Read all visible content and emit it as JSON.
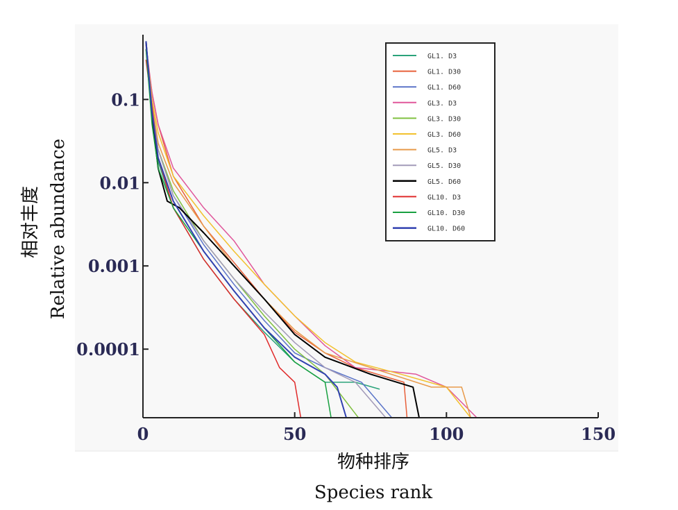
{
  "chart_data": {
    "type": "line",
    "xlabel_cn": "物种排序",
    "xlabel": "Species rank",
    "ylabel_cn": "相对丰度",
    "ylabel": "Relative abundance",
    "y_scale": "log",
    "xlim": [
      0,
      150
    ],
    "ylim": [
      1.5e-05,
      0.6
    ],
    "x_ticks": [
      0,
      50,
      100,
      150
    ],
    "x_tick_labels": [
      "0",
      "50",
      "100",
      "150"
    ],
    "y_ticks": [
      0.1,
      0.01,
      0.001,
      0.0001
    ],
    "y_tick_labels": [
      "0.1",
      "0.01",
      "0.001",
      "0.0001"
    ],
    "grid": false,
    "legend_position": "top-right",
    "series": [
      {
        "name": "GL1. D3",
        "color": "#2aa37a",
        "lw": 1.5,
        "end_rank": 78,
        "points": [
          [
            1,
            0.5
          ],
          [
            3,
            0.07
          ],
          [
            5,
            0.018
          ],
          [
            10,
            0.005
          ],
          [
            20,
            0.0012
          ],
          [
            30,
            0.0004
          ],
          [
            40,
            0.00016
          ],
          [
            50,
            7e-05
          ],
          [
            60,
            4e-05
          ],
          [
            70,
            4e-05
          ],
          [
            78,
            3.3e-05
          ]
        ]
      },
      {
        "name": "GL1. D30",
        "color": "#e8603a",
        "lw": 1.5,
        "end_rank": 87,
        "points": [
          [
            1,
            0.4
          ],
          [
            3,
            0.12
          ],
          [
            5,
            0.05
          ],
          [
            10,
            0.012
          ],
          [
            20,
            0.003
          ],
          [
            30,
            0.0011
          ],
          [
            40,
            0.0004
          ],
          [
            50,
            0.00016
          ],
          [
            60,
            9e-05
          ],
          [
            70,
            6e-05
          ],
          [
            86,
            4e-05
          ],
          [
            87,
            1.5e-05
          ]
        ]
      },
      {
        "name": "GL1. D60",
        "color": "#5b74c8",
        "lw": 1.5,
        "end_rank": 82,
        "points": [
          [
            1,
            0.5
          ],
          [
            3,
            0.08
          ],
          [
            5,
            0.025
          ],
          [
            10,
            0.007
          ],
          [
            20,
            0.0018
          ],
          [
            30,
            0.0006
          ],
          [
            40,
            0.00022
          ],
          [
            50,
            9e-05
          ],
          [
            60,
            6e-05
          ],
          [
            72,
            4e-05
          ],
          [
            82,
            1.5e-05
          ]
        ]
      },
      {
        "name": "GL3. D3",
        "color": "#e0569a",
        "lw": 1.5,
        "end_rank": 133,
        "points": [
          [
            1,
            0.45
          ],
          [
            3,
            0.12
          ],
          [
            5,
            0.05
          ],
          [
            10,
            0.015
          ],
          [
            20,
            0.005
          ],
          [
            30,
            0.002
          ],
          [
            40,
            0.0006
          ],
          [
            50,
            0.00025
          ],
          [
            60,
            0.00011
          ],
          [
            70,
            6e-05
          ],
          [
            90,
            5e-05
          ],
          [
            100,
            3.5e-05
          ],
          [
            110,
            1.5e-05
          ],
          [
            133,
            1.5e-05
          ]
        ]
      },
      {
        "name": "GL3. D30",
        "color": "#80c040",
        "lw": 1.5,
        "end_rank": 71,
        "points": [
          [
            1,
            0.4
          ],
          [
            3,
            0.08
          ],
          [
            5,
            0.025
          ],
          [
            10,
            0.008
          ],
          [
            20,
            0.002
          ],
          [
            30,
            0.0007
          ],
          [
            40,
            0.00025
          ],
          [
            50,
            0.0001
          ],
          [
            60,
            5e-05
          ],
          [
            71,
            1.5e-05
          ]
        ]
      },
      {
        "name": "GL3. D60",
        "color": "#f2c12e",
        "lw": 1.5,
        "end_rank": 108,
        "points": [
          [
            1,
            0.45
          ],
          [
            3,
            0.1
          ],
          [
            5,
            0.04
          ],
          [
            10,
            0.012
          ],
          [
            20,
            0.004
          ],
          [
            30,
            0.0015
          ],
          [
            40,
            0.0006
          ],
          [
            50,
            0.00025
          ],
          [
            60,
            0.00012
          ],
          [
            70,
            7e-05
          ],
          [
            85,
            5e-05
          ],
          [
            100,
            3.5e-05
          ],
          [
            108,
            1.5e-05
          ]
        ]
      },
      {
        "name": "GL5. D3",
        "color": "#e89a4a",
        "lw": 1.5,
        "end_rank": 108,
        "points": [
          [
            1,
            0.4
          ],
          [
            3,
            0.09
          ],
          [
            5,
            0.03
          ],
          [
            10,
            0.01
          ],
          [
            20,
            0.003
          ],
          [
            30,
            0.001
          ],
          [
            40,
            0.0004
          ],
          [
            50,
            0.00017
          ],
          [
            60,
            9e-05
          ],
          [
            75,
            6e-05
          ],
          [
            95,
            3.5e-05
          ],
          [
            105,
            3.5e-05
          ],
          [
            108,
            1.5e-05
          ]
        ]
      },
      {
        "name": "GL5. D30",
        "color": "#a29ab8",
        "lw": 1.5,
        "end_rank": 80,
        "points": [
          [
            1,
            0.45
          ],
          [
            3,
            0.08
          ],
          [
            5,
            0.025
          ],
          [
            10,
            0.007
          ],
          [
            20,
            0.002
          ],
          [
            30,
            0.0007
          ],
          [
            40,
            0.00028
          ],
          [
            50,
            0.00012
          ],
          [
            60,
            6e-05
          ],
          [
            70,
            4e-05
          ],
          [
            80,
            1.5e-05
          ]
        ]
      },
      {
        "name": "GL5. D60",
        "color": "#000000",
        "lw": 2.0,
        "end_rank": 102,
        "points": [
          [
            1,
            0.5
          ],
          [
            3,
            0.06
          ],
          [
            5,
            0.015
          ],
          [
            8,
            0.006
          ],
          [
            12,
            0.005
          ],
          [
            20,
            0.0025
          ],
          [
            30,
            0.001
          ],
          [
            40,
            0.0004
          ],
          [
            50,
            0.00015
          ],
          [
            60,
            8e-05
          ],
          [
            75,
            5e-05
          ],
          [
            89,
            3.5e-05
          ],
          [
            91,
            1.5e-05
          ],
          [
            102,
            1.5e-05
          ]
        ]
      },
      {
        "name": "GL10. D3",
        "color": "#e02a2a",
        "lw": 1.5,
        "end_rank": 57,
        "points": [
          [
            1,
            0.3
          ],
          [
            3,
            0.08
          ],
          [
            5,
            0.02
          ],
          [
            10,
            0.005
          ],
          [
            20,
            0.0012
          ],
          [
            30,
            0.0004
          ],
          [
            40,
            0.00015
          ],
          [
            45,
            6e-05
          ],
          [
            50,
            4e-05
          ],
          [
            52,
            1.5e-05
          ],
          [
            57,
            1.5e-05
          ]
        ]
      },
      {
        "name": "GL10. D30",
        "color": "#18a040",
        "lw": 1.5,
        "end_rank": 66,
        "points": [
          [
            1,
            0.4
          ],
          [
            3,
            0.05
          ],
          [
            5,
            0.015
          ],
          [
            10,
            0.005
          ],
          [
            20,
            0.0015
          ],
          [
            30,
            0.0005
          ],
          [
            40,
            0.00018
          ],
          [
            50,
            7e-05
          ],
          [
            60,
            4e-05
          ],
          [
            62,
            1.5e-05
          ],
          [
            66,
            1.5e-05
          ]
        ]
      },
      {
        "name": "GL10. D60",
        "color": "#3040b0",
        "lw": 2.0,
        "end_rank": 67,
        "points": [
          [
            1,
            0.5
          ],
          [
            3,
            0.07
          ],
          [
            5,
            0.02
          ],
          [
            10,
            0.006
          ],
          [
            20,
            0.0015
          ],
          [
            30,
            0.0005
          ],
          [
            40,
            0.00018
          ],
          [
            50,
            8e-05
          ],
          [
            60,
            5e-05
          ],
          [
            64,
            3.5e-05
          ],
          [
            67,
            1.5e-05
          ]
        ]
      }
    ]
  }
}
